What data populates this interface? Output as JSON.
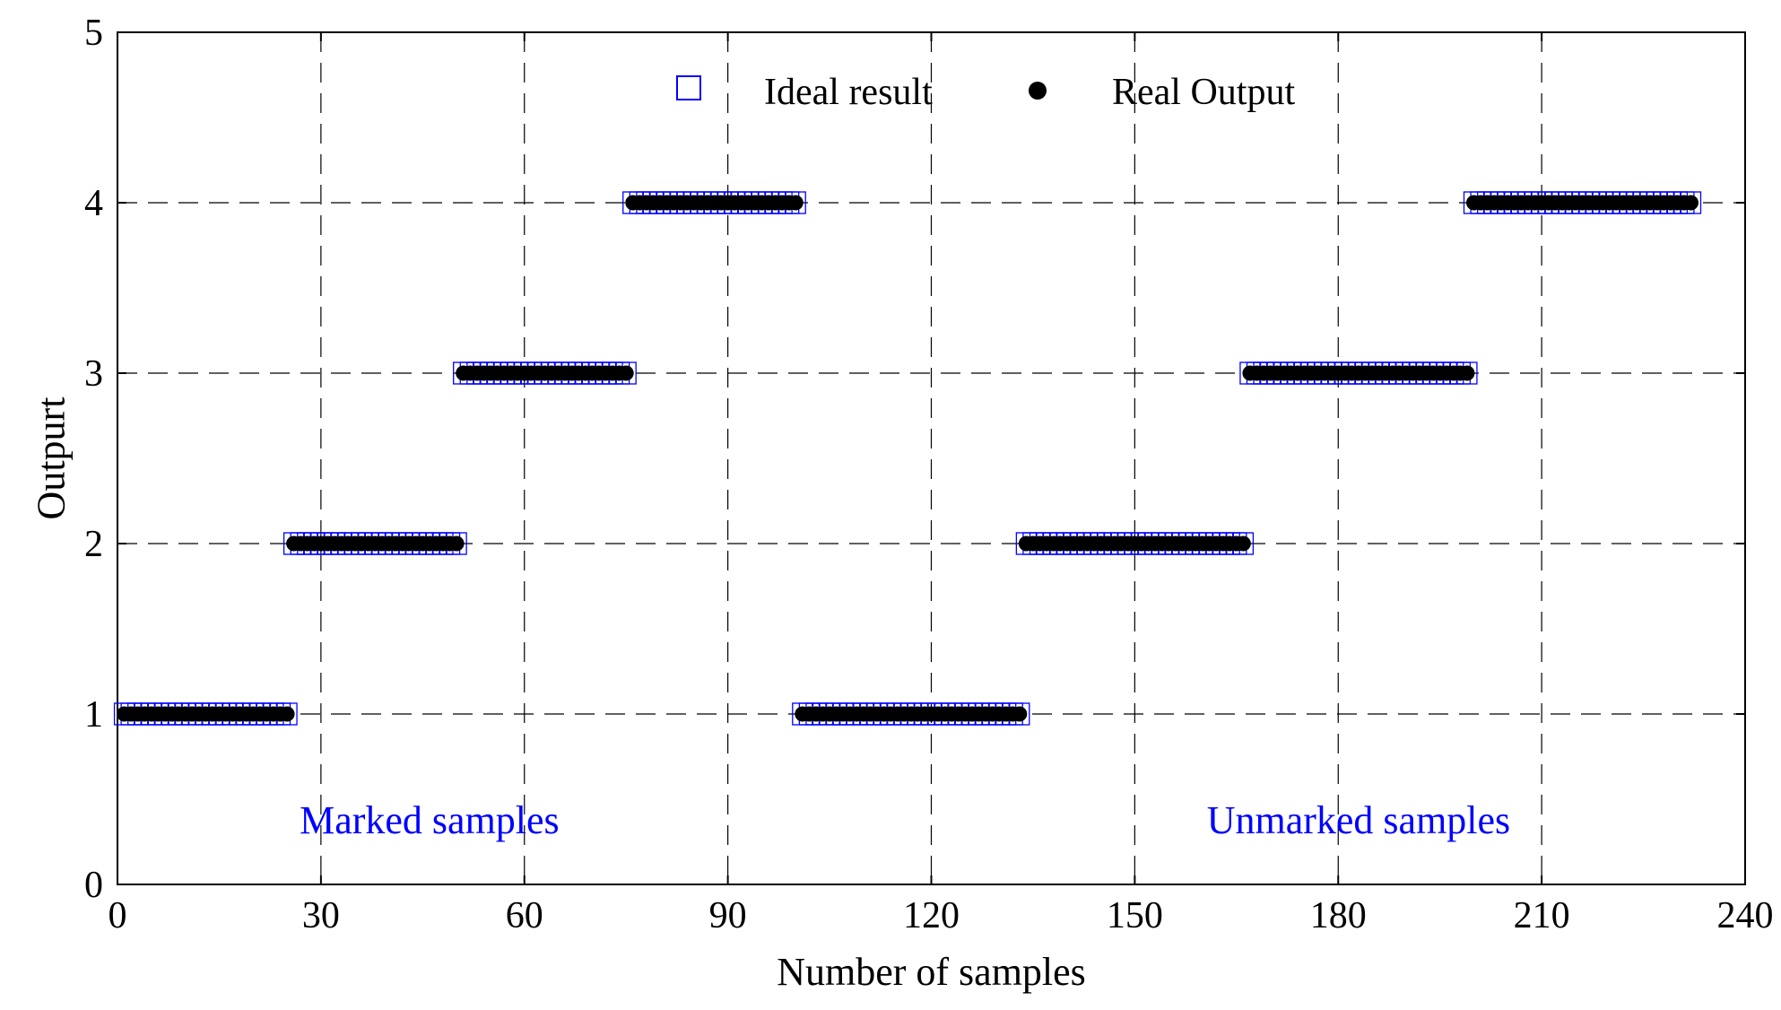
{
  "chart_data": {
    "type": "scatter",
    "xlabel": "Number of samples",
    "ylabel": "Outpurt",
    "xlim": [
      0,
      240
    ],
    "ylim": [
      0,
      5
    ],
    "xticks": [
      0,
      30,
      60,
      90,
      120,
      150,
      180,
      210,
      240
    ],
    "yticks": [
      0,
      1,
      2,
      3,
      4,
      5
    ],
    "grid": true,
    "legend_position": "top",
    "colors": {
      "ideal": "#0000ff",
      "real": "#000000",
      "annotation": "#0000ff"
    },
    "segments": [
      {
        "x_start": 1,
        "x_end": 25,
        "value": 1
      },
      {
        "x_start": 26,
        "x_end": 50,
        "value": 2
      },
      {
        "x_start": 51,
        "x_end": 75,
        "value": 3
      },
      {
        "x_start": 76,
        "x_end": 100,
        "value": 4
      },
      {
        "x_start": 101,
        "x_end": 133,
        "value": 1
      },
      {
        "x_start": 134,
        "x_end": 166,
        "value": 2
      },
      {
        "x_start": 167,
        "x_end": 199,
        "value": 3
      },
      {
        "x_start": 200,
        "x_end": 232,
        "value": 4
      }
    ],
    "series": [
      {
        "name": "Ideal result",
        "marker": "square"
      },
      {
        "name": "Real Output",
        "marker": "filled-circle"
      }
    ],
    "annotations": [
      {
        "text": "Marked samples",
        "x": 46,
        "y": 0.3
      },
      {
        "text": "Unmarked samples",
        "x": 183,
        "y": 0.3
      }
    ]
  }
}
